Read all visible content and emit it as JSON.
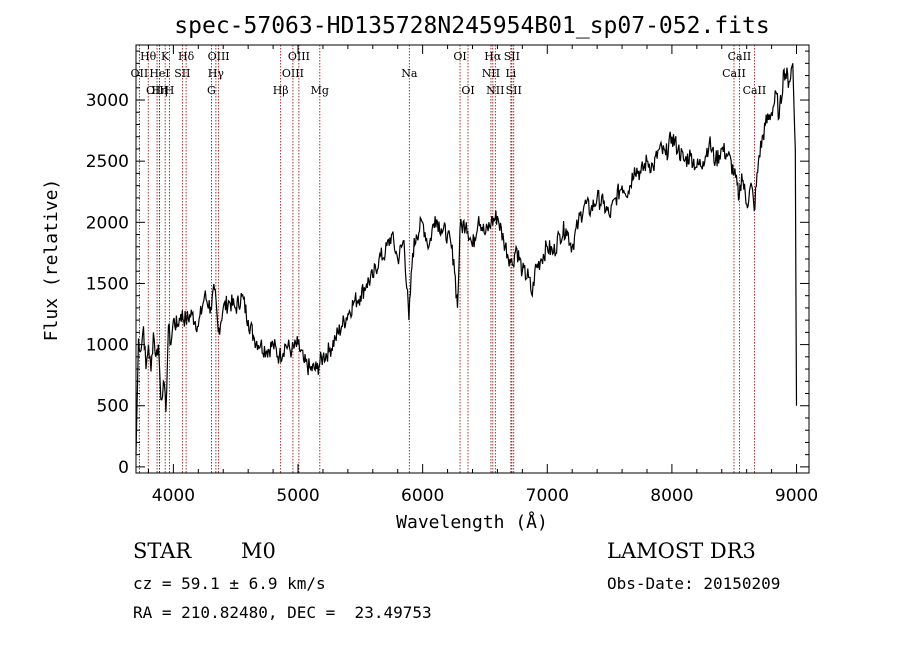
{
  "chart_data": {
    "type": "line",
    "title": "spec-57063-HD135728N245954B01_sp07-052.fits",
    "xlabel": "Wavelength (Å)",
    "ylabel": "Flux (relative)",
    "xlim": [
      3700,
      9100
    ],
    "ylim": [
      -50,
      3450
    ],
    "xticks": [
      4000,
      5000,
      6000,
      7000,
      8000,
      9000
    ],
    "yticks": [
      0,
      500,
      1000,
      1500,
      2000,
      2500,
      3000
    ],
    "series": [
      {
        "name": "flux",
        "x": [
          3700,
          3720,
          3740,
          3760,
          3780,
          3800,
          3820,
          3840,
          3860,
          3880,
          3900,
          3920,
          3940,
          3960,
          3980,
          4000,
          4030,
          4060,
          4100,
          4150,
          4200,
          4250,
          4300,
          4330,
          4360,
          4400,
          4450,
          4500,
          4550,
          4600,
          4650,
          4700,
          4750,
          4800,
          4850,
          4900,
          4950,
          5000,
          5050,
          5100,
          5150,
          5200,
          5250,
          5300,
          5350,
          5400,
          5450,
          5500,
          5550,
          5600,
          5650,
          5700,
          5750,
          5800,
          5850,
          5890,
          5920,
          5950,
          6000,
          6050,
          6100,
          6150,
          6200,
          6250,
          6280,
          6300,
          6350,
          6400,
          6450,
          6500,
          6550,
          6600,
          6650,
          6700,
          6720,
          6750,
          6800,
          6850,
          6880,
          6900,
          6950,
          7000,
          7050,
          7100,
          7150,
          7200,
          7250,
          7300,
          7350,
          7400,
          7450,
          7500,
          7550,
          7600,
          7650,
          7700,
          7750,
          7800,
          7850,
          7900,
          7950,
          8000,
          8050,
          8100,
          8150,
          8200,
          8250,
          8300,
          8350,
          8400,
          8450,
          8500,
          8540,
          8560,
          8600,
          8640,
          8660,
          8700,
          8750,
          8800,
          8840,
          8860,
          8900,
          8940,
          8970,
          8990,
          9000
        ],
        "values": [
          100,
          1050,
          950,
          1150,
          800,
          1000,
          780,
          1100,
          900,
          1000,
          550,
          700,
          450,
          1150,
          1000,
          1200,
          1150,
          1250,
          1200,
          1250,
          1150,
          1400,
          1300,
          1450,
          1100,
          1300,
          1350,
          1300,
          1400,
          1200,
          1050,
          1000,
          950,
          1000,
          900,
          1000,
          950,
          1000,
          850,
          800,
          800,
          900,
          950,
          1050,
          1150,
          1250,
          1350,
          1400,
          1500,
          1550,
          1700,
          1750,
          1900,
          1700,
          1850,
          1200,
          1750,
          1900,
          2000,
          1800,
          2050,
          1950,
          1900,
          1700,
          1300,
          1950,
          2000,
          1800,
          2050,
          1900,
          2000,
          2050,
          1850,
          1700,
          1650,
          1800,
          1600,
          1550,
          1400,
          1600,
          1700,
          1800,
          1750,
          1900,
          1950,
          1800,
          2000,
          2150,
          2100,
          2200,
          2150,
          2050,
          2200,
          2300,
          2250,
          2450,
          2400,
          2500,
          2450,
          2600,
          2550,
          2700,
          2600,
          2500,
          2550,
          2450,
          2500,
          2650,
          2500,
          2600,
          2550,
          2400,
          2200,
          2400,
          2150,
          2300,
          2100,
          2550,
          2800,
          2900,
          3050,
          2850,
          3250,
          3150,
          3300,
          2600,
          500
        ]
      }
    ],
    "spectral_lines": [
      {
        "label": "OII",
        "x": 3727,
        "row": 1
      },
      {
        "label": "Hθ",
        "x": 3798,
        "row": 0
      },
      {
        "label": "OIII",
        "x": 3869,
        "row": 2
      },
      {
        "label": "HeI",
        "x": 3889,
        "row": 1
      },
      {
        "label": "Hη",
        "x": 3889,
        "row": 2
      },
      {
        "label": "K",
        "x": 3934,
        "row": 0
      },
      {
        "label": "H",
        "x": 3969,
        "row": 2
      },
      {
        "label": "SII",
        "x": 4072,
        "row": 1
      },
      {
        "label": "Hδ",
        "x": 4102,
        "row": 0
      },
      {
        "label": "G",
        "x": 4305,
        "row": 2
      },
      {
        "label": "Hγ",
        "x": 4341,
        "row": 1
      },
      {
        "label": "OIII",
        "x": 4363,
        "row": 0
      },
      {
        "label": "Hβ",
        "x": 4861,
        "row": 2
      },
      {
        "label": "OIII",
        "x": 4959,
        "row": 1
      },
      {
        "label": "OIII",
        "x": 5007,
        "row": 0
      },
      {
        "label": "Mg",
        "x": 5175,
        "row": 2
      },
      {
        "label": "Na",
        "x": 5893,
        "row": 1
      },
      {
        "label": "OI",
        "x": 6300,
        "row": 0
      },
      {
        "label": "OI",
        "x": 6364,
        "row": 2
      },
      {
        "label": "NII",
        "x": 6548,
        "row": 1
      },
      {
        "label": "Hα",
        "x": 6563,
        "row": 0
      },
      {
        "label": "NII",
        "x": 6583,
        "row": 2
      },
      {
        "label": "Li",
        "x": 6708,
        "row": 1
      },
      {
        "label": "SII",
        "x": 6716,
        "row": 0
      },
      {
        "label": "SII",
        "x": 6731,
        "row": 2
      },
      {
        "label": "CaII",
        "x": 8498,
        "row": 1
      },
      {
        "label": "CaII",
        "x": 8542,
        "row": 0
      },
      {
        "label": "CaII",
        "x": 8662,
        "row": 2
      }
    ],
    "line_color": "#8b0000",
    "grid": false
  },
  "info": {
    "object_class": "STAR",
    "subclass": "M0",
    "survey": "LAMOST DR3",
    "cz": "cz = 59.1 ± 6.9 km/s",
    "obs_date": "Obs-Date: 20150209",
    "coords": "RA = 210.82480, DEC =  23.49753"
  }
}
